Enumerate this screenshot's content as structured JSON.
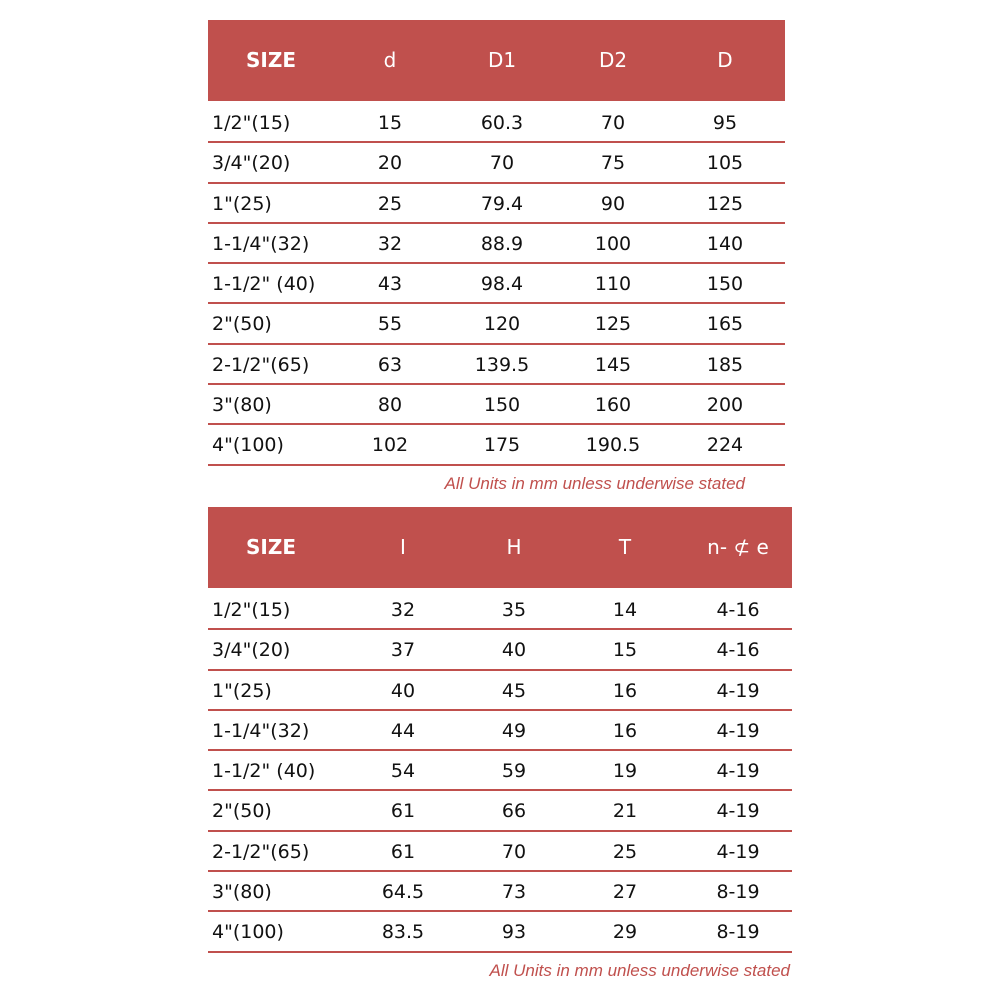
{
  "table1": {
    "headers": [
      "SIZE",
      "d",
      "D1",
      "D2",
      "D"
    ],
    "rows": [
      [
        "1/2\"(15)",
        "15",
        "60.3",
        "70",
        "95"
      ],
      [
        "3/4\"(20)",
        "20",
        "70",
        "75",
        "105"
      ],
      [
        "1\"(25)",
        "25",
        "79.4",
        "90",
        "125"
      ],
      [
        "1-1/4\"(32)",
        "32",
        "88.9",
        "100",
        "140"
      ],
      [
        "1-1/2\" (40)",
        "43",
        "98.4",
        "110",
        "150"
      ],
      [
        "2\"(50)",
        "55",
        "120",
        "125",
        "165"
      ],
      [
        "2-1/2\"(65)",
        "63",
        "139.5",
        "145",
        "185"
      ],
      [
        "3\"(80)",
        "80",
        "150",
        "160",
        "200"
      ],
      [
        "4\"(100)",
        "102",
        "175",
        "190.5",
        "224"
      ]
    ],
    "note": "All Units in mm unless underwise stated"
  },
  "table2": {
    "headers": [
      "SIZE",
      "I",
      "H",
      "T",
      "n- ⊄ e"
    ],
    "rows": [
      [
        "1/2\"(15)",
        "32",
        "35",
        "14",
        "4-16"
      ],
      [
        "3/4\"(20)",
        "37",
        "40",
        "15",
        "4-16"
      ],
      [
        "1\"(25)",
        "40",
        "45",
        "16",
        "4-19"
      ],
      [
        "1-1/4\"(32)",
        "44",
        "49",
        "16",
        "4-19"
      ],
      [
        "1-1/2\" (40)",
        "54",
        "59",
        "19",
        "4-19"
      ],
      [
        "2\"(50)",
        "61",
        "66",
        "21",
        "4-19"
      ],
      [
        "2-1/2\"(65)",
        "61",
        "70",
        "25",
        "4-19"
      ],
      [
        "3\"(80)",
        "64.5",
        "73",
        "27",
        "8-19"
      ],
      [
        "4\"(100)",
        "83.5",
        "93",
        "29",
        "8-19"
      ]
    ],
    "note": "All Units in mm unless underwise stated"
  },
  "colors": {
    "header": "#c0504d",
    "note": "#c0504d"
  }
}
